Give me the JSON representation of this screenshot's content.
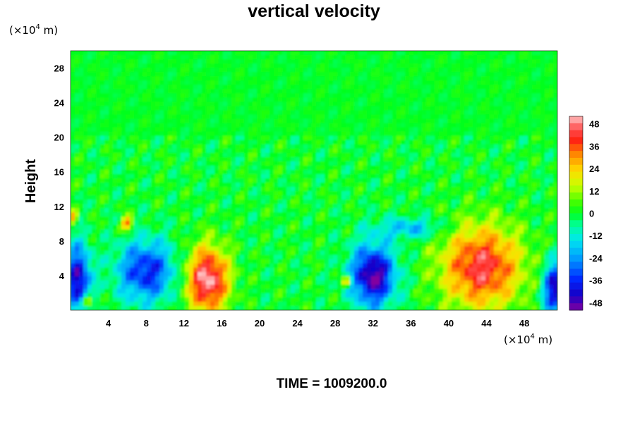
{
  "chart_data": {
    "type": "heatmap",
    "title": "vertical velocity",
    "ylabel": "Height",
    "x_unit": {
      "prefix": "(×10",
      "exponent": "4",
      "suffix": " m)"
    },
    "y_unit": {
      "prefix": "(×10",
      "exponent": "4",
      "suffix": " m)"
    },
    "xlim": [
      0,
      51.5
    ],
    "ylim": [
      0,
      30
    ],
    "x_ticks": [
      "4",
      "8",
      "12",
      "16",
      "20",
      "24",
      "28",
      "32",
      "36",
      "40",
      "44",
      "48"
    ],
    "y_ticks": [
      "4",
      "8",
      "12",
      "16",
      "20",
      "24",
      "28"
    ],
    "colorbar": {
      "range": [
        -52,
        52
      ],
      "ticks": [
        "48",
        "36",
        "24",
        "12",
        "0",
        "-12",
        "-24",
        "-36",
        "-48"
      ]
    },
    "features": [
      {
        "kind": "updraft",
        "x": 14.5,
        "y": 3.5,
        "rx": 2.2,
        "ry": 3.8,
        "peak": 52
      },
      {
        "kind": "updraft",
        "x": 43.5,
        "y": 5.0,
        "rx": 4.2,
        "ry": 4.8,
        "peak": 44
      },
      {
        "kind": "updraft",
        "x": 6.0,
        "y": 10.0,
        "rx": 0.6,
        "ry": 0.8,
        "peak": 36
      },
      {
        "kind": "updraft",
        "x": 1.8,
        "y": 1.0,
        "rx": 0.6,
        "ry": 0.7,
        "peak": 38
      },
      {
        "kind": "updraft",
        "x": 29.2,
        "y": 3.3,
        "rx": 0.5,
        "ry": 0.7,
        "peak": 30
      },
      {
        "kind": "updraft",
        "x": 0.3,
        "y": 10.7,
        "rx": 0.5,
        "ry": 0.8,
        "peak": 30
      },
      {
        "kind": "downdraft",
        "x": 32.0,
        "y": 4.0,
        "rx": 2.3,
        "ry": 3.5,
        "peak": -52
      },
      {
        "kind": "downdraft",
        "x": 8.0,
        "y": 4.5,
        "rx": 3.0,
        "ry": 3.5,
        "peak": -38
      },
      {
        "kind": "downdraft",
        "x": 0.8,
        "y": 3.5,
        "rx": 1.3,
        "ry": 4.0,
        "peak": -46
      },
      {
        "kind": "downdraft",
        "x": 51.2,
        "y": 2.5,
        "rx": 1.2,
        "ry": 3.0,
        "peak": -46
      },
      {
        "kind": "downdraft",
        "x": 36.0,
        "y": 9.5,
        "rx": 3.5,
        "ry": 1.2,
        "peak": -20
      }
    ],
    "grid": false
  },
  "footer": {
    "time_label": "TIME = 1009200.0"
  },
  "colors": {
    "background": "#ffffff",
    "field_zero": "#00ff1e"
  }
}
